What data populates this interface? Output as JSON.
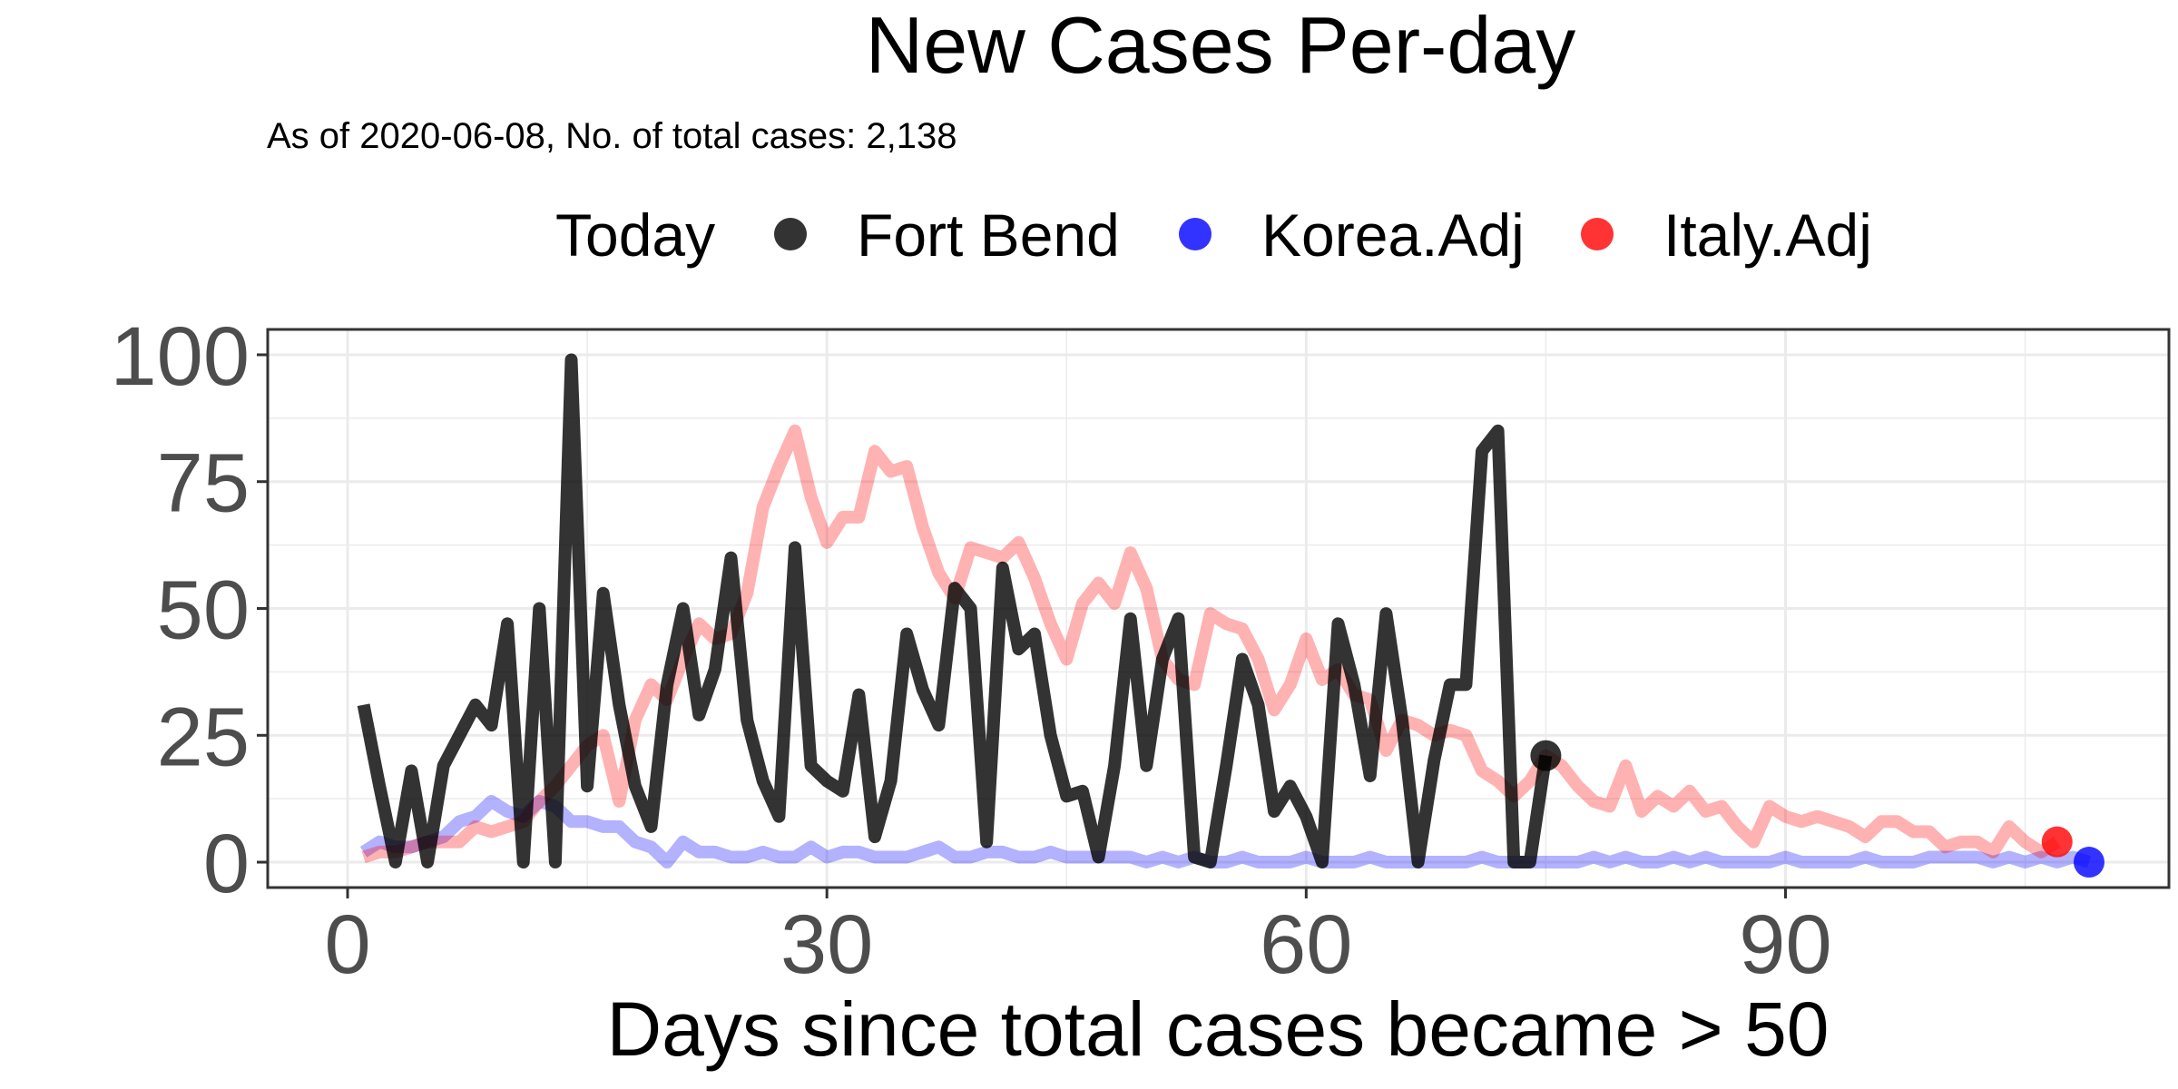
{
  "chart_data": {
    "type": "line",
    "title": "New Cases Per-day",
    "subtitle": "As of 2020-06-08, No. of total cases: 2,138",
    "xlabel": "Days since total cases became > 50",
    "ylabel": "",
    "xlim": [
      -5,
      114
    ],
    "ylim": [
      -5,
      105
    ],
    "x_ticks": [
      0,
      30,
      60,
      90
    ],
    "x_tick_labels": [
      "0",
      "30",
      "60",
      "90"
    ],
    "y_ticks": [
      0,
      25,
      50,
      75,
      100
    ],
    "y_tick_labels": [
      "0",
      "25",
      "50",
      "75",
      "100"
    ],
    "grid": true,
    "legend_title": "Today",
    "legend_position": "top",
    "series": [
      {
        "name": "Fort Bend",
        "color": "#000000",
        "x": [
          1,
          2,
          3,
          4,
          5,
          6,
          7,
          8,
          9,
          10,
          11,
          12,
          13,
          14,
          15,
          16,
          17,
          18,
          19,
          20,
          21,
          22,
          23,
          24,
          25,
          26,
          27,
          28,
          29,
          30,
          31,
          32,
          33,
          34,
          35,
          36,
          37,
          38,
          39,
          40,
          41,
          42,
          43,
          44,
          45,
          46,
          47,
          48,
          49,
          50,
          51,
          52,
          53,
          54,
          55,
          56,
          57,
          58,
          59,
          60,
          61,
          62,
          63,
          64,
          65,
          66,
          67,
          68,
          69,
          70,
          71,
          72,
          73,
          74,
          75
        ],
        "values": [
          31,
          15,
          0,
          18,
          0,
          19,
          25,
          31,
          27,
          47,
          0,
          50,
          0,
          99,
          15,
          53,
          31,
          15,
          7,
          35,
          50,
          29,
          38,
          60,
          28,
          16,
          9,
          62,
          19,
          16,
          14,
          33,
          5,
          16,
          45,
          34,
          27,
          54,
          50,
          4,
          58,
          42,
          45,
          25,
          13,
          14,
          1,
          19,
          48,
          19,
          40,
          48,
          1,
          0,
          19,
          40,
          31,
          10,
          15,
          9,
          0,
          47,
          35,
          17,
          49,
          28,
          0,
          20,
          35,
          35,
          81,
          85,
          0,
          0,
          21
        ]
      },
      {
        "name": "Korea.Adj",
        "color": "#0000ff",
        "x": [
          1,
          2,
          3,
          4,
          5,
          6,
          7,
          8,
          9,
          10,
          11,
          12,
          13,
          14,
          15,
          16,
          17,
          18,
          19,
          20,
          21,
          22,
          23,
          24,
          25,
          26,
          27,
          28,
          29,
          30,
          31,
          32,
          33,
          34,
          35,
          36,
          37,
          38,
          39,
          40,
          41,
          42,
          43,
          44,
          45,
          46,
          47,
          48,
          49,
          50,
          51,
          52,
          53,
          54,
          55,
          56,
          57,
          58,
          59,
          60,
          61,
          62,
          63,
          64,
          65,
          66,
          67,
          68,
          69,
          70,
          71,
          72,
          73,
          74,
          75,
          76,
          77,
          78,
          79,
          80,
          81,
          82,
          83,
          84,
          85,
          86,
          87,
          88,
          89,
          90,
          91,
          92,
          93,
          94,
          95,
          96,
          97,
          98,
          99,
          100,
          101,
          102,
          103,
          104,
          105,
          106,
          107,
          108,
          109
        ],
        "values": [
          2,
          4,
          3,
          3,
          4,
          5,
          8,
          9,
          12,
          10,
          9,
          12,
          11,
          8,
          8,
          7,
          7,
          4,
          3,
          0,
          4,
          2,
          2,
          1,
          1,
          2,
          1,
          1,
          3,
          1,
          2,
          2,
          1,
          1,
          1,
          2,
          3,
          1,
          1,
          2,
          2,
          1,
          1,
          2,
          1,
          1,
          1,
          1,
          1,
          0,
          1,
          0,
          1,
          0,
          0,
          1,
          0,
          0,
          0,
          1,
          0,
          0,
          0,
          1,
          0,
          0,
          0,
          0,
          0,
          0,
          1,
          0,
          0,
          0,
          0,
          0,
          0,
          1,
          0,
          1,
          0,
          0,
          1,
          0,
          1,
          0,
          0,
          0,
          0,
          1,
          0,
          0,
          0,
          0,
          1,
          0,
          0,
          0,
          1,
          1,
          1,
          1,
          0,
          1,
          0,
          1,
          0,
          1,
          0
        ]
      },
      {
        "name": "Italy.Adj",
        "color": "#ff0000",
        "x": [
          1,
          2,
          3,
          4,
          5,
          6,
          7,
          8,
          9,
          10,
          11,
          12,
          13,
          14,
          15,
          16,
          17,
          18,
          19,
          20,
          21,
          22,
          23,
          24,
          25,
          26,
          27,
          28,
          29,
          30,
          31,
          32,
          33,
          34,
          35,
          36,
          37,
          38,
          39,
          40,
          41,
          42,
          43,
          44,
          45,
          46,
          47,
          48,
          49,
          50,
          51,
          52,
          53,
          54,
          55,
          56,
          57,
          58,
          59,
          60,
          61,
          62,
          63,
          64,
          65,
          66,
          67,
          68,
          69,
          70,
          71,
          72,
          73,
          74,
          75,
          76,
          77,
          78,
          79,
          80,
          81,
          82,
          83,
          84,
          85,
          86,
          87,
          88,
          89,
          90,
          91,
          92,
          93,
          94,
          95,
          96,
          97,
          98,
          99,
          100,
          101,
          102,
          103,
          104,
          105,
          106,
          107
        ],
        "values": [
          1,
          2,
          2,
          3,
          4,
          4,
          4,
          7,
          6,
          7,
          8,
          12,
          15,
          19,
          23,
          25,
          12,
          28,
          35,
          32,
          40,
          47,
          44,
          45,
          53,
          70,
          78,
          85,
          72,
          63,
          68,
          68,
          81,
          77,
          78,
          66,
          57,
          52,
          62,
          61,
          60,
          63,
          56,
          47,
          40,
          51,
          55,
          51,
          61,
          54,
          40,
          36,
          35,
          49,
          47,
          46,
          40,
          30,
          35,
          44,
          36,
          38,
          33,
          32,
          22,
          28,
          27,
          25,
          26,
          25,
          18,
          16,
          13,
          16,
          21,
          19,
          15,
          12,
          11,
          19,
          10,
          13,
          11,
          14,
          10,
          11,
          7,
          4,
          11,
          9,
          8,
          9,
          8,
          7,
          5,
          8,
          8,
          6,
          6,
          3,
          4,
          4,
          2,
          7,
          4,
          2,
          4
        ]
      }
    ]
  }
}
